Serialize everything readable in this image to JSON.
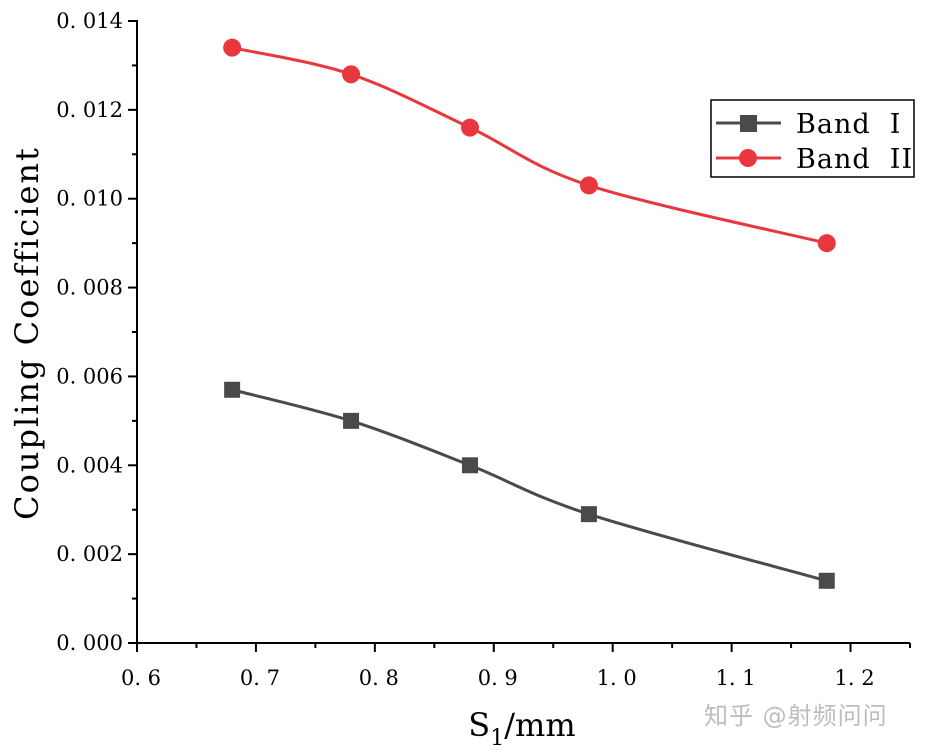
{
  "chart_data": {
    "type": "line",
    "title": "",
    "xlabel": "S",
    "xlabel_sub": "1",
    "xlabel_suffix": "/mm",
    "ylabel": "Coupling Coefficient",
    "xlim": [
      0.6,
      1.25
    ],
    "ylim": [
      0.0,
      0.014
    ],
    "xticks": [
      0.6,
      0.7,
      0.8,
      0.9,
      1.0,
      1.1,
      1.2
    ],
    "xtick_labels": [
      "0.6",
      "0.7",
      "0.8",
      "0.9",
      "1.0",
      "1.1",
      "1.2"
    ],
    "yticks": [
      0.0,
      0.002,
      0.004,
      0.006,
      0.008,
      0.01,
      0.012,
      0.014
    ],
    "ytick_labels": [
      "0.000",
      "0.002",
      "0.004",
      "0.006",
      "0.008",
      "0.010",
      "0.012",
      "0.014"
    ],
    "grid": false,
    "legend_position": "top-right",
    "x": [
      0.68,
      0.78,
      0.88,
      0.98,
      1.18
    ],
    "series": [
      {
        "name": "Band I",
        "marker": "square",
        "color": "#4a4a4a",
        "values": [
          0.0057,
          0.005,
          0.004,
          0.0029,
          0.0014
        ]
      },
      {
        "name": "Band II",
        "marker": "circle",
        "color": "#e8383d",
        "values": [
          0.0134,
          0.0128,
          0.0116,
          0.0103,
          0.009
        ]
      }
    ]
  },
  "watermark": "知乎 @射频问问"
}
